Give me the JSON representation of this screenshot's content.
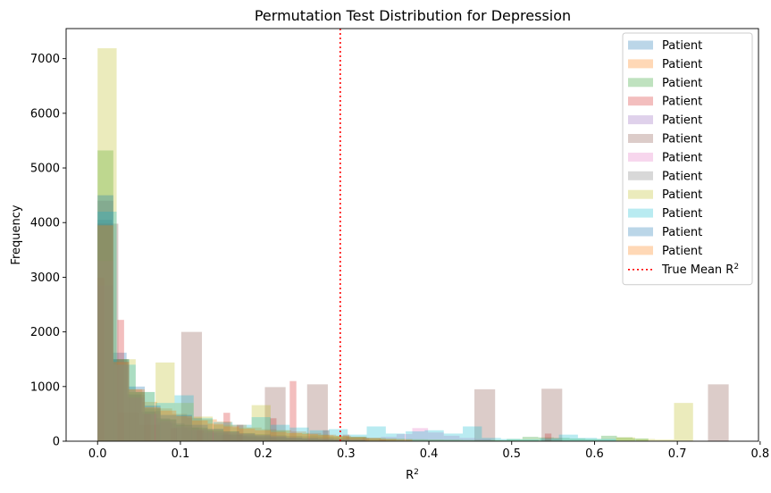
{
  "chart_data": {
    "type": "histogram",
    "title": "Permutation Test Distribution for Depression",
    "xlabel": "R",
    "xlabel_sup": "2",
    "ylabel": "Frequency",
    "xlim": [
      -0.038,
      0.798
    ],
    "ylim": [
      0,
      7550
    ],
    "xticks": [
      0.0,
      0.1,
      0.2,
      0.3,
      0.4,
      0.5,
      0.6,
      0.7,
      0.8
    ],
    "xtick_labels": [
      "0.0",
      "0.1",
      "0.2",
      "0.3",
      "0.4",
      "0.5",
      "0.6",
      "0.7",
      "0.8"
    ],
    "yticks": [
      0,
      1000,
      2000,
      3000,
      4000,
      5000,
      6000,
      7000
    ],
    "ytick_labels": [
      "0",
      "1000",
      "2000",
      "3000",
      "4000",
      "5000",
      "6000",
      "7000"
    ],
    "grid": false,
    "legend_position": "top-right",
    "bar_alpha": 0.3,
    "true_mean": {
      "label": "True Mean R",
      "label_sup": "2",
      "value": 0.293,
      "color": "#ff0000",
      "style": "dotted"
    },
    "series": [
      {
        "name": "Patient",
        "color": "#1f77b4",
        "bin_width": 0.0175,
        "bins": [
          [
            0.0,
            4050
          ],
          [
            0.0175,
            1620
          ],
          [
            0.035,
            860
          ],
          [
            0.0525,
            540
          ],
          [
            0.07,
            420
          ],
          [
            0.0875,
            330
          ],
          [
            0.105,
            250
          ],
          [
            0.1225,
            200
          ],
          [
            0.14,
            150
          ],
          [
            0.1575,
            120
          ],
          [
            0.175,
            90
          ],
          [
            0.1925,
            70
          ],
          [
            0.21,
            55
          ],
          [
            0.2275,
            45
          ],
          [
            0.245,
            35
          ],
          [
            0.2625,
            25
          ],
          [
            0.28,
            20
          ],
          [
            0.2975,
            15
          ],
          [
            0.315,
            10
          ],
          [
            0.3325,
            8
          ]
        ]
      },
      {
        "name": "Patient",
        "color": "#ff7f0e",
        "bin_width": 0.018,
        "bins": [
          [
            0.0,
            3980
          ],
          [
            0.018,
            1500
          ],
          [
            0.036,
            950
          ],
          [
            0.054,
            720
          ],
          [
            0.072,
            600
          ],
          [
            0.09,
            500
          ],
          [
            0.108,
            430
          ],
          [
            0.126,
            400
          ],
          [
            0.144,
            360
          ],
          [
            0.162,
            300
          ],
          [
            0.18,
            250
          ],
          [
            0.198,
            220
          ],
          [
            0.216,
            200
          ],
          [
            0.234,
            180
          ],
          [
            0.252,
            150
          ],
          [
            0.27,
            120
          ],
          [
            0.288,
            100
          ],
          [
            0.306,
            80
          ],
          [
            0.324,
            60
          ],
          [
            0.342,
            40
          ]
        ]
      },
      {
        "name": "Patient",
        "color": "#2ca02c",
        "bin_width": 0.019,
        "bins": [
          [
            0.0,
            5320
          ],
          [
            0.019,
            1500
          ],
          [
            0.038,
            900
          ],
          [
            0.057,
            600
          ],
          [
            0.076,
            400
          ],
          [
            0.095,
            300
          ],
          [
            0.114,
            250
          ],
          [
            0.133,
            210
          ],
          [
            0.152,
            180
          ],
          [
            0.171,
            150
          ],
          [
            0.19,
            130
          ],
          [
            0.209,
            110
          ],
          [
            0.228,
            100
          ],
          [
            0.247,
            90
          ],
          [
            0.266,
            80
          ],
          [
            0.285,
            70
          ],
          [
            0.304,
            60
          ],
          [
            0.323,
            50
          ],
          [
            0.342,
            45
          ],
          [
            0.361,
            40
          ],
          [
            0.38,
            35
          ],
          [
            0.399,
            30
          ],
          [
            0.418,
            30
          ],
          [
            0.437,
            25
          ],
          [
            0.456,
            25
          ],
          [
            0.475,
            20
          ],
          [
            0.494,
            40
          ],
          [
            0.513,
            80
          ],
          [
            0.532,
            70
          ],
          [
            0.551,
            60
          ],
          [
            0.57,
            50
          ],
          [
            0.589,
            40
          ],
          [
            0.608,
            100
          ],
          [
            0.627,
            70
          ],
          [
            0.646,
            50
          ]
        ]
      },
      {
        "name": "Patient",
        "color": "#d62728",
        "bin_width": 0.008,
        "bins": [
          [
            0.0,
            2990
          ],
          [
            0.024,
            2220
          ],
          [
            0.056,
            500
          ],
          [
            0.088,
            240
          ],
          [
            0.12,
            200
          ],
          [
            0.152,
            520
          ],
          [
            0.168,
            300
          ],
          [
            0.208,
            420
          ],
          [
            0.232,
            1100
          ],
          [
            0.272,
            200
          ],
          [
            0.296,
            120
          ],
          [
            0.32,
            60
          ],
          [
            0.34,
            40
          ],
          [
            0.54,
            140
          ]
        ]
      },
      {
        "name": "Patient",
        "color": "#9467bd",
        "bin_width": 0.018,
        "bins": [
          [
            0.0,
            2850
          ],
          [
            0.018,
            1450
          ],
          [
            0.036,
            800
          ],
          [
            0.054,
            500
          ],
          [
            0.072,
            350
          ],
          [
            0.09,
            250
          ],
          [
            0.108,
            190
          ],
          [
            0.126,
            150
          ],
          [
            0.144,
            110
          ],
          [
            0.162,
            90
          ],
          [
            0.18,
            70
          ],
          [
            0.198,
            55
          ],
          [
            0.216,
            45
          ],
          [
            0.234,
            35
          ],
          [
            0.252,
            28
          ],
          [
            0.27,
            22
          ],
          [
            0.288,
            18
          ]
        ]
      },
      {
        "name": "Patient",
        "color": "#8c564b",
        "bin_width": 0.025,
        "bins": [
          [
            0.0,
            3980
          ],
          [
            0.101,
            2000
          ],
          [
            0.202,
            990
          ],
          [
            0.253,
            1040
          ],
          [
            0.455,
            950
          ],
          [
            0.536,
            960
          ],
          [
            0.737,
            1040
          ],
          [
            0.025,
            520
          ],
          [
            0.05,
            300
          ],
          [
            0.15,
            120
          ],
          [
            0.3,
            80
          ]
        ]
      },
      {
        "name": "Patient",
        "color": "#e377c2",
        "bin_width": 0.019,
        "bins": [
          [
            0.0,
            3300
          ],
          [
            0.019,
            1400
          ],
          [
            0.038,
            800
          ],
          [
            0.057,
            500
          ],
          [
            0.076,
            380
          ],
          [
            0.095,
            280
          ],
          [
            0.114,
            220
          ],
          [
            0.133,
            180
          ],
          [
            0.152,
            160
          ],
          [
            0.171,
            140
          ],
          [
            0.19,
            120
          ],
          [
            0.209,
            100
          ],
          [
            0.228,
            90
          ],
          [
            0.247,
            80
          ],
          [
            0.266,
            70
          ],
          [
            0.285,
            60
          ],
          [
            0.304,
            50
          ],
          [
            0.323,
            60
          ],
          [
            0.342,
            80
          ],
          [
            0.361,
            130
          ],
          [
            0.38,
            240
          ],
          [
            0.399,
            160
          ],
          [
            0.418,
            100
          ],
          [
            0.437,
            60
          ],
          [
            0.456,
            40
          ]
        ]
      },
      {
        "name": "Patient",
        "color": "#7f7f7f",
        "bin_width": 0.019,
        "bins": [
          [
            0.0,
            4400
          ],
          [
            0.019,
            1450
          ],
          [
            0.038,
            850
          ],
          [
            0.057,
            550
          ],
          [
            0.076,
            400
          ],
          [
            0.095,
            300
          ],
          [
            0.114,
            230
          ],
          [
            0.133,
            180
          ],
          [
            0.152,
            140
          ],
          [
            0.171,
            110
          ],
          [
            0.19,
            90
          ],
          [
            0.209,
            70
          ],
          [
            0.228,
            55
          ],
          [
            0.247,
            45
          ],
          [
            0.266,
            35
          ],
          [
            0.285,
            28
          ]
        ]
      },
      {
        "name": "Patient",
        "color": "#bcbd22",
        "bin_width": 0.023,
        "bins": [
          [
            0.0,
            7190
          ],
          [
            0.023,
            1500
          ],
          [
            0.046,
            900
          ],
          [
            0.07,
            1440
          ],
          [
            0.093,
            700
          ],
          [
            0.116,
            450
          ],
          [
            0.14,
            300
          ],
          [
            0.163,
            250
          ],
          [
            0.186,
            660
          ],
          [
            0.209,
            200
          ],
          [
            0.232,
            150
          ],
          [
            0.256,
            120
          ],
          [
            0.279,
            100
          ],
          [
            0.302,
            80
          ],
          [
            0.325,
            60
          ],
          [
            0.348,
            45
          ],
          [
            0.372,
            35
          ],
          [
            0.395,
            30
          ],
          [
            0.418,
            25
          ],
          [
            0.441,
            20
          ],
          [
            0.464,
            20
          ],
          [
            0.487,
            15
          ],
          [
            0.51,
            15
          ],
          [
            0.534,
            10
          ],
          [
            0.557,
            10
          ],
          [
            0.58,
            10
          ],
          [
            0.603,
            10
          ],
          [
            0.626,
            70
          ],
          [
            0.65,
            40
          ],
          [
            0.673,
            30
          ],
          [
            0.696,
            700
          ]
        ]
      },
      {
        "name": "Patient",
        "color": "#17becf",
        "bin_width": 0.023,
        "bins": [
          [
            0.0,
            4200
          ],
          [
            0.023,
            1400
          ],
          [
            0.046,
            900
          ],
          [
            0.07,
            700
          ],
          [
            0.093,
            840
          ],
          [
            0.116,
            420
          ],
          [
            0.14,
            350
          ],
          [
            0.163,
            300
          ],
          [
            0.186,
            440
          ],
          [
            0.209,
            300
          ],
          [
            0.232,
            250
          ],
          [
            0.256,
            200
          ],
          [
            0.279,
            220
          ],
          [
            0.302,
            120
          ],
          [
            0.325,
            270
          ],
          [
            0.348,
            140
          ],
          [
            0.372,
            180
          ],
          [
            0.395,
            200
          ],
          [
            0.418,
            140
          ],
          [
            0.441,
            270
          ],
          [
            0.464,
            60
          ],
          [
            0.487,
            40
          ],
          [
            0.51,
            30
          ],
          [
            0.534,
            50
          ],
          [
            0.557,
            120
          ],
          [
            0.58,
            60
          ],
          [
            0.603,
            40
          ]
        ]
      },
      {
        "name": "Patient",
        "color": "#1f77b4",
        "bin_width": 0.019,
        "bins": [
          [
            0.0,
            4500
          ],
          [
            0.019,
            1500
          ],
          [
            0.038,
            1000
          ],
          [
            0.057,
            650
          ],
          [
            0.076,
            480
          ],
          [
            0.095,
            480
          ],
          [
            0.114,
            300
          ],
          [
            0.133,
            230
          ],
          [
            0.152,
            180
          ],
          [
            0.171,
            140
          ],
          [
            0.19,
            110
          ],
          [
            0.209,
            90
          ],
          [
            0.228,
            70
          ],
          [
            0.247,
            55
          ],
          [
            0.266,
            45
          ],
          [
            0.285,
            35
          ],
          [
            0.304,
            28
          ]
        ]
      },
      {
        "name": "Patient",
        "color": "#ff7f0e",
        "bin_width": 0.019,
        "bins": [
          [
            0.0,
            3950
          ],
          [
            0.019,
            1450
          ],
          [
            0.038,
            950
          ],
          [
            0.057,
            620
          ],
          [
            0.076,
            560
          ],
          [
            0.095,
            460
          ],
          [
            0.114,
            380
          ],
          [
            0.133,
            320
          ],
          [
            0.152,
            270
          ],
          [
            0.171,
            230
          ],
          [
            0.19,
            200
          ],
          [
            0.209,
            170
          ],
          [
            0.228,
            150
          ],
          [
            0.247,
            130
          ],
          [
            0.266,
            110
          ],
          [
            0.285,
            90
          ],
          [
            0.304,
            70
          ],
          [
            0.323,
            55
          ],
          [
            0.342,
            40
          ],
          [
            0.361,
            30
          ]
        ]
      }
    ]
  }
}
